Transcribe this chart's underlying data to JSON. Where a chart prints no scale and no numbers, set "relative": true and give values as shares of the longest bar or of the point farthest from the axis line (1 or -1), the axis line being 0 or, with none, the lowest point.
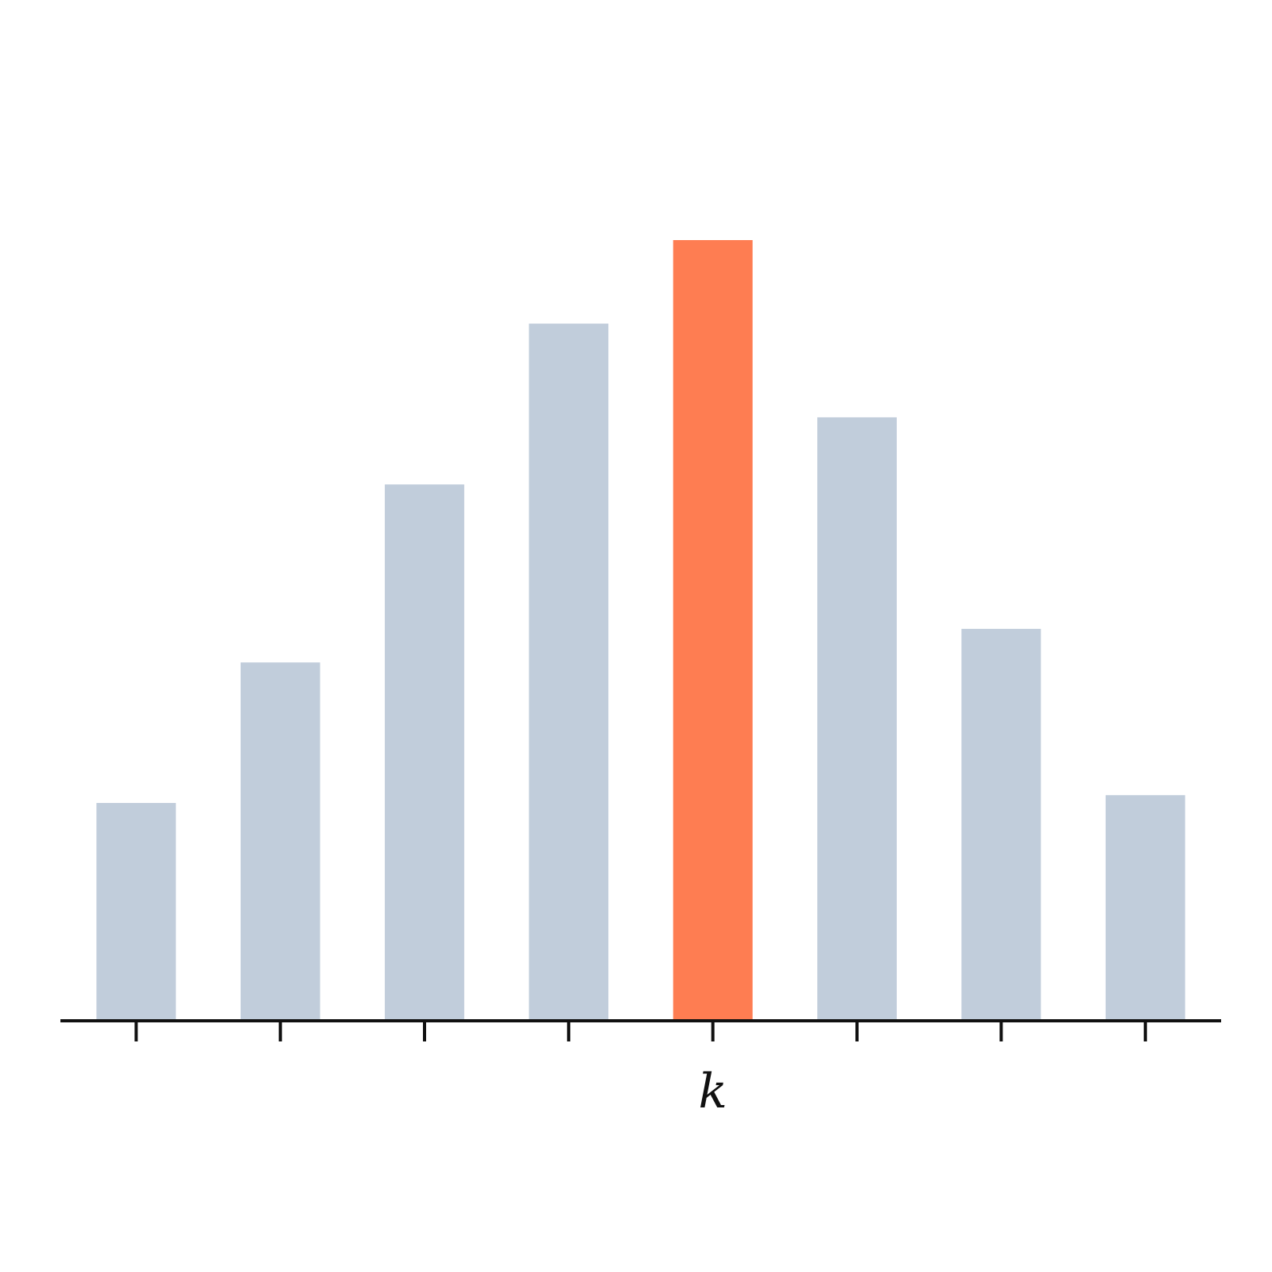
{
  "chart_data": {
    "type": "bar",
    "relative": true,
    "categories": [
      null,
      null,
      null,
      null,
      "k",
      null,
      null,
      null
    ],
    "values": [
      0.279,
      0.459,
      0.687,
      0.893,
      1,
      0.773,
      0.502,
      0.289
    ],
    "colors": [
      "#c1cddb",
      "#c1cddb",
      "#c1cddb",
      "#c1cddb",
      "#fe7d52",
      "#c1cddb",
      "#c1cddb",
      "#c1cddb"
    ]
  }
}
